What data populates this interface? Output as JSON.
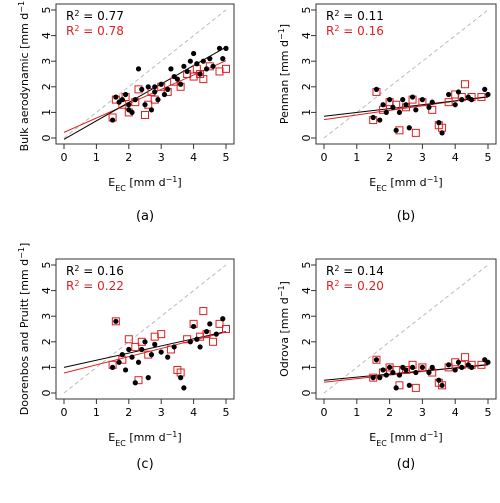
{
  "colors": {
    "black": "#000000",
    "red": "#e02020",
    "gray": "#bbbbbb",
    "axis": "#333333"
  },
  "chart_data": [
    {
      "type": "scatter",
      "panel_label": "(a)",
      "ylabel": "Bulk aerodynamic  [mm d",
      "ylabel_sup": "−1",
      "ylabel_close": "]",
      "xlabel": "E",
      "xlabel_sub": "EC",
      "xlabel_unit": "  [mm d",
      "xlabel_sup": "−1",
      "xlabel_close": "]",
      "xlim": [
        0,
        5
      ],
      "ylim": [
        0,
        5
      ],
      "x_ticks": [
        "0",
        "1",
        "2",
        "3",
        "4",
        "5"
      ],
      "y_ticks": [
        "0",
        "1",
        "2",
        "3",
        "4",
        "5"
      ],
      "r2_black": {
        "prefix": "R",
        "sup": "2",
        "value": " = 0.77"
      },
      "r2_red": {
        "prefix": "R",
        "sup": "2",
        "value": " = 0.78"
      },
      "fit_black": {
        "intercept": -0.05,
        "slope": 0.72
      },
      "fit_red": {
        "intercept": 0.22,
        "slope": 0.56
      },
      "series_black_dots": [
        [
          1.5,
          0.7
        ],
        [
          1.6,
          1.6
        ],
        [
          1.7,
          1.4
        ],
        [
          1.8,
          1.5
        ],
        [
          1.9,
          1.7
        ],
        [
          2.0,
          1.1
        ],
        [
          2.0,
          1.3
        ],
        [
          2.1,
          1.0
        ],
        [
          2.2,
          1.5
        ],
        [
          2.3,
          2.7
        ],
        [
          2.4,
          1.9
        ],
        [
          2.5,
          1.3
        ],
        [
          2.6,
          2.0
        ],
        [
          2.7,
          1.1
        ],
        [
          2.8,
          1.8
        ],
        [
          2.8,
          2.0
        ],
        [
          2.9,
          1.5
        ],
        [
          3.0,
          2.1
        ],
        [
          3.1,
          1.7
        ],
        [
          3.2,
          1.9
        ],
        [
          3.3,
          2.7
        ],
        [
          3.4,
          2.4
        ],
        [
          3.5,
          2.3
        ],
        [
          3.6,
          2.1
        ],
        [
          3.7,
          2.8
        ],
        [
          3.8,
          2.6
        ],
        [
          3.9,
          3.0
        ],
        [
          4.0,
          3.3
        ],
        [
          4.1,
          2.9
        ],
        [
          4.2,
          2.5
        ],
        [
          4.3,
          3.0
        ],
        [
          4.4,
          2.7
        ],
        [
          4.5,
          3.1
        ],
        [
          4.6,
          2.8
        ],
        [
          4.8,
          3.5
        ],
        [
          4.9,
          3.1
        ],
        [
          5.0,
          3.5
        ]
      ],
      "series_red_squares": [
        [
          1.5,
          0.8
        ],
        [
          1.6,
          1.5
        ],
        [
          1.8,
          1.3
        ],
        [
          1.9,
          1.6
        ],
        [
          2.0,
          1.0
        ],
        [
          2.2,
          1.4
        ],
        [
          2.3,
          1.9
        ],
        [
          2.5,
          0.9
        ],
        [
          2.6,
          1.3
        ],
        [
          2.7,
          1.8
        ],
        [
          2.8,
          1.5
        ],
        [
          3.0,
          2.0
        ],
        [
          3.2,
          1.8
        ],
        [
          3.4,
          2.2
        ],
        [
          3.6,
          2.0
        ],
        [
          3.8,
          2.5
        ],
        [
          4.0,
          2.4
        ],
        [
          4.1,
          2.7
        ],
        [
          4.2,
          2.5
        ],
        [
          4.3,
          2.3
        ],
        [
          4.5,
          2.8
        ],
        [
          4.8,
          2.6
        ],
        [
          5.0,
          2.7
        ]
      ]
    },
    {
      "type": "scatter",
      "panel_label": "(b)",
      "ylabel": "Penman  [mm d",
      "ylabel_sup": "−1",
      "ylabel_close": "]",
      "xlabel": "E",
      "xlabel_sub": "EC",
      "xlabel_unit": "  [mm d",
      "xlabel_sup": "−1",
      "xlabel_close": "]",
      "xlim": [
        0,
        5
      ],
      "ylim": [
        0,
        5
      ],
      "x_ticks": [
        "0",
        "1",
        "2",
        "3",
        "4",
        "5"
      ],
      "y_ticks": [
        "0",
        "1",
        "2",
        "3",
        "4",
        "5"
      ],
      "r2_black": {
        "prefix": "R",
        "sup": "2",
        "value": " = 0.11"
      },
      "r2_red": {
        "prefix": "R",
        "sup": "2",
        "value": " = 0.16"
      },
      "fit_black": {
        "intercept": 0.85,
        "slope": 0.15
      },
      "fit_red": {
        "intercept": 0.72,
        "slope": 0.18
      },
      "series_black_dots": [
        [
          1.5,
          0.8
        ],
        [
          1.6,
          1.9
        ],
        [
          1.7,
          0.7
        ],
        [
          1.8,
          1.3
        ],
        [
          1.9,
          1.0
        ],
        [
          2.0,
          1.5
        ],
        [
          2.1,
          1.2
        ],
        [
          2.2,
          0.3
        ],
        [
          2.3,
          1.0
        ],
        [
          2.4,
          1.5
        ],
        [
          2.5,
          1.3
        ],
        [
          2.6,
          0.4
        ],
        [
          2.7,
          1.6
        ],
        [
          2.8,
          1.1
        ],
        [
          3.0,
          1.5
        ],
        [
          3.2,
          1.2
        ],
        [
          3.3,
          1.4
        ],
        [
          3.5,
          0.6
        ],
        [
          3.6,
          0.2
        ],
        [
          3.8,
          1.7
        ],
        [
          4.0,
          1.3
        ],
        [
          4.1,
          1.8
        ],
        [
          4.2,
          1.5
        ],
        [
          4.4,
          1.6
        ],
        [
          4.5,
          1.5
        ],
        [
          4.9,
          1.9
        ],
        [
          5.0,
          1.7
        ]
      ],
      "series_red_squares": [
        [
          1.5,
          0.7
        ],
        [
          1.6,
          1.8
        ],
        [
          1.8,
          1.1
        ],
        [
          2.0,
          1.4
        ],
        [
          2.2,
          1.3
        ],
        [
          2.3,
          0.3
        ],
        [
          2.5,
          1.2
        ],
        [
          2.7,
          1.5
        ],
        [
          2.8,
          0.2
        ],
        [
          3.0,
          1.4
        ],
        [
          3.3,
          1.1
        ],
        [
          3.5,
          0.5
        ],
        [
          3.6,
          0.4
        ],
        [
          3.8,
          1.4
        ],
        [
          4.0,
          1.7
        ],
        [
          4.2,
          1.6
        ],
        [
          4.3,
          2.1
        ],
        [
          4.5,
          1.6
        ],
        [
          4.8,
          1.6
        ]
      ]
    },
    {
      "type": "scatter",
      "panel_label": "(c)",
      "ylabel": "Doorenbos and Pruitt  [mm d",
      "ylabel_sup": "−1",
      "ylabel_close": "]",
      "xlabel": "E",
      "xlabel_sub": "EC",
      "xlabel_unit": "  [mm d",
      "xlabel_sup": "−1",
      "xlabel_close": "]",
      "xlim": [
        0,
        5
      ],
      "ylim": [
        0,
        5
      ],
      "x_ticks": [
        "0",
        "1",
        "2",
        "3",
        "4",
        "5"
      ],
      "y_ticks": [
        "0",
        "1",
        "2",
        "3",
        "4",
        "5"
      ],
      "r2_black": {
        "prefix": "R",
        "sup": "2",
        "value": " = 0.16"
      },
      "r2_red": {
        "prefix": "R",
        "sup": "2",
        "value": " = 0.22"
      },
      "fit_black": {
        "intercept": 1.0,
        "slope": 0.28
      },
      "fit_red": {
        "intercept": 0.78,
        "slope": 0.32
      },
      "series_black_dots": [
        [
          1.5,
          1.0
        ],
        [
          1.6,
          2.8
        ],
        [
          1.7,
          1.2
        ],
        [
          1.8,
          1.5
        ],
        [
          1.9,
          0.9
        ],
        [
          2.0,
          1.7
        ],
        [
          2.1,
          1.4
        ],
        [
          2.2,
          0.4
        ],
        [
          2.3,
          1.2
        ],
        [
          2.4,
          1.7
        ],
        [
          2.5,
          2.0
        ],
        [
          2.6,
          0.6
        ],
        [
          2.7,
          1.5
        ],
        [
          2.8,
          1.9
        ],
        [
          3.0,
          1.6
        ],
        [
          3.2,
          1.4
        ],
        [
          3.4,
          1.8
        ],
        [
          3.6,
          0.6
        ],
        [
          3.7,
          0.2
        ],
        [
          3.9,
          2.0
        ],
        [
          4.0,
          2.6
        ],
        [
          4.1,
          2.1
        ],
        [
          4.2,
          1.8
        ],
        [
          4.4,
          2.4
        ],
        [
          4.5,
          2.7
        ],
        [
          4.7,
          2.3
        ],
        [
          4.9,
          2.9
        ]
      ],
      "series_red_squares": [
        [
          1.5,
          1.1
        ],
        [
          1.6,
          2.8
        ],
        [
          1.8,
          1.3
        ],
        [
          2.0,
          2.1
        ],
        [
          2.2,
          1.8
        ],
        [
          2.3,
          0.5
        ],
        [
          2.4,
          2.0
        ],
        [
          2.6,
          1.5
        ],
        [
          2.8,
          2.2
        ],
        [
          3.0,
          2.3
        ],
        [
          3.3,
          1.7
        ],
        [
          3.5,
          0.9
        ],
        [
          3.6,
          0.8
        ],
        [
          3.8,
          2.1
        ],
        [
          4.0,
          2.7
        ],
        [
          4.2,
          2.2
        ],
        [
          4.3,
          3.2
        ],
        [
          4.4,
          2.3
        ],
        [
          4.6,
          2.0
        ],
        [
          4.8,
          2.7
        ],
        [
          5.0,
          2.5
        ]
      ]
    },
    {
      "type": "scatter",
      "panel_label": "(d)",
      "ylabel": "Odrova  [mm d",
      "ylabel_sup": "−1",
      "ylabel_close": "]",
      "xlabel": "E",
      "xlabel_sub": "EC",
      "xlabel_unit": "  [mm d",
      "xlabel_sup": "−1",
      "xlabel_close": "]",
      "xlim": [
        0,
        5
      ],
      "ylim": [
        0,
        5
      ],
      "x_ticks": [
        "0",
        "1",
        "2",
        "3",
        "4",
        "5"
      ],
      "y_ticks": [
        "0",
        "1",
        "2",
        "3",
        "4",
        "5"
      ],
      "r2_black": {
        "prefix": "R",
        "sup": "2",
        "value": " = 0.14"
      },
      "r2_red": {
        "prefix": "R",
        "sup": "2",
        "value": " = 0.20"
      },
      "fit_black": {
        "intercept": 0.5,
        "slope": 0.12
      },
      "fit_red": {
        "intercept": 0.42,
        "slope": 0.14
      },
      "series_black_dots": [
        [
          1.5,
          0.6
        ],
        [
          1.6,
          1.3
        ],
        [
          1.7,
          0.6
        ],
        [
          1.8,
          0.9
        ],
        [
          1.9,
          0.7
        ],
        [
          2.0,
          1.0
        ],
        [
          2.1,
          0.8
        ],
        [
          2.2,
          0.2
        ],
        [
          2.3,
          0.7
        ],
        [
          2.4,
          1.0
        ],
        [
          2.5,
          0.9
        ],
        [
          2.6,
          0.3
        ],
        [
          2.7,
          1.0
        ],
        [
          2.8,
          0.8
        ],
        [
          3.0,
          1.0
        ],
        [
          3.2,
          0.8
        ],
        [
          3.3,
          1.0
        ],
        [
          3.5,
          0.5
        ],
        [
          3.6,
          0.3
        ],
        [
          3.8,
          1.1
        ],
        [
          4.0,
          0.9
        ],
        [
          4.1,
          1.2
        ],
        [
          4.2,
          1.0
        ],
        [
          4.4,
          1.1
        ],
        [
          4.5,
          1.0
        ],
        [
          4.9,
          1.3
        ],
        [
          5.0,
          1.2
        ]
      ],
      "series_red_squares": [
        [
          1.5,
          0.6
        ],
        [
          1.6,
          1.3
        ],
        [
          1.8,
          0.8
        ],
        [
          2.0,
          1.0
        ],
        [
          2.2,
          0.9
        ],
        [
          2.3,
          0.3
        ],
        [
          2.5,
          0.9
        ],
        [
          2.7,
          1.1
        ],
        [
          2.8,
          0.2
        ],
        [
          3.0,
          1.0
        ],
        [
          3.3,
          0.8
        ],
        [
          3.5,
          0.4
        ],
        [
          3.6,
          0.3
        ],
        [
          3.8,
          1.0
        ],
        [
          4.0,
          1.2
        ],
        [
          4.2,
          1.1
        ],
        [
          4.3,
          1.4
        ],
        [
          4.5,
          1.1
        ],
        [
          4.8,
          1.1
        ]
      ]
    }
  ]
}
